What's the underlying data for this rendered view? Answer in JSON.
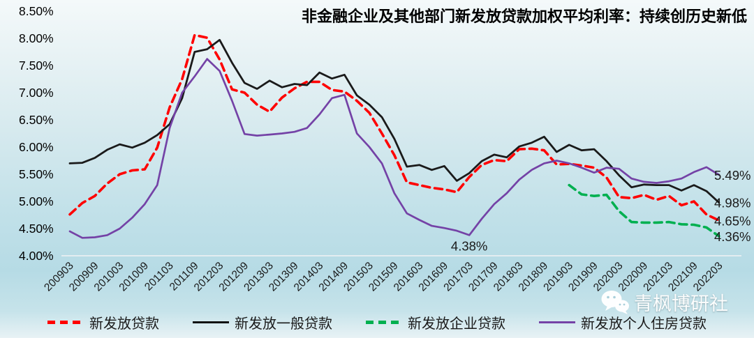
{
  "watermark": {
    "text": "青枫博研社",
    "icon": "wechat-icon"
  },
  "chart_data": {
    "type": "line",
    "title": "非金融企业及其他部门新发放贷款加权平均利率：持续创历史新低",
    "x_axis": {
      "categories": [
        "200903",
        "200906",
        "200909",
        "200912",
        "201003",
        "201006",
        "201009",
        "201012",
        "201103",
        "201106",
        "201109",
        "201112",
        "201203",
        "201206",
        "201209",
        "201212",
        "201303",
        "201306",
        "201309",
        "201312",
        "201403",
        "201406",
        "201409",
        "201412",
        "201503",
        "201506",
        "201509",
        "201512",
        "201603",
        "201606",
        "201609",
        "201612",
        "201703",
        "201706",
        "201709",
        "201712",
        "201803",
        "201806",
        "201809",
        "201812",
        "201903",
        "201906",
        "201909",
        "201912",
        "202003",
        "202006",
        "202009",
        "202012",
        "202103",
        "202106",
        "202109",
        "202112",
        "202203"
      ],
      "tick_labels": [
        "200903",
        "200909",
        "201003",
        "201009",
        "201103",
        "201109",
        "201203",
        "201209",
        "201303",
        "201309",
        "201403",
        "201409",
        "201503",
        "201509",
        "201603",
        "201609",
        "201703",
        "201709",
        "201803",
        "201809",
        "201903",
        "201909",
        "202003",
        "202009",
        "202103",
        "202109",
        "202203"
      ]
    },
    "y_axis": {
      "min": 4.0,
      "max": 8.5,
      "step": 0.5,
      "tick_labels": [
        "8.50%",
        "8.00%",
        "7.50%",
        "7.00%",
        "6.50%",
        "6.00%",
        "5.50%",
        "5.00%",
        "4.50%",
        "4.00%"
      ]
    },
    "series": [
      {
        "name": "新发放贷款",
        "color": "#ff0000",
        "style": "dashed",
        "values": [
          4.76,
          4.97,
          5.1,
          5.33,
          5.5,
          5.57,
          5.59,
          5.99,
          6.73,
          7.25,
          8.06,
          8.01,
          7.61,
          7.06,
          7.0,
          6.78,
          6.65,
          6.91,
          7.08,
          7.2,
          7.2,
          7.05,
          7.02,
          6.85,
          6.63,
          6.25,
          5.85,
          5.35,
          5.3,
          5.25,
          5.22,
          5.17,
          5.45,
          5.67,
          5.76,
          5.74,
          5.96,
          5.97,
          5.94,
          5.68,
          5.69,
          5.66,
          5.62,
          5.44,
          5.08,
          5.06,
          5.12,
          5.03,
          5.1,
          4.93,
          5.0,
          4.76,
          4.65
        ]
      },
      {
        "name": "新发放一般贷款",
        "color": "#1a1a1a",
        "style": "solid",
        "values": [
          5.7,
          5.71,
          5.8,
          5.95,
          6.05,
          5.99,
          6.08,
          6.22,
          6.42,
          6.9,
          7.75,
          7.8,
          7.97,
          7.55,
          7.18,
          7.07,
          7.22,
          7.1,
          7.16,
          7.14,
          7.37,
          7.26,
          7.33,
          6.95,
          6.78,
          6.55,
          6.15,
          5.64,
          5.67,
          5.58,
          5.65,
          5.38,
          5.52,
          5.74,
          5.86,
          5.81,
          6.01,
          6.08,
          6.19,
          5.91,
          6.04,
          5.94,
          5.96,
          5.74,
          5.48,
          5.26,
          5.31,
          5.3,
          5.3,
          5.2,
          5.3,
          5.19,
          4.98
        ]
      },
      {
        "name": "新发放企业贷款",
        "color": "#00b050",
        "style": "dashed",
        "values": [
          null,
          null,
          null,
          null,
          null,
          null,
          null,
          null,
          null,
          null,
          null,
          null,
          null,
          null,
          null,
          null,
          null,
          null,
          null,
          null,
          null,
          null,
          null,
          null,
          null,
          null,
          null,
          null,
          null,
          null,
          null,
          null,
          null,
          null,
          null,
          null,
          null,
          null,
          null,
          null,
          5.3,
          5.13,
          5.1,
          5.12,
          4.82,
          4.62,
          4.61,
          4.61,
          4.62,
          4.58,
          4.57,
          4.52,
          4.36
        ]
      },
      {
        "name": "新发放个人住房贷款",
        "color": "#7442a6",
        "style": "solid",
        "values": [
          4.45,
          4.33,
          4.34,
          4.38,
          4.5,
          4.7,
          4.95,
          5.3,
          6.35,
          7.0,
          7.3,
          7.62,
          7.4,
          6.85,
          6.24,
          6.21,
          6.23,
          6.25,
          6.28,
          6.35,
          6.6,
          6.9,
          6.96,
          6.25,
          6.0,
          5.7,
          5.15,
          4.78,
          4.66,
          4.55,
          4.51,
          4.46,
          4.38,
          4.68,
          4.95,
          5.15,
          5.4,
          5.58,
          5.7,
          5.75,
          5.7,
          5.62,
          5.53,
          5.62,
          5.6,
          5.42,
          5.36,
          5.34,
          5.37,
          5.42,
          5.54,
          5.63,
          5.49
        ]
      }
    ],
    "annotations": [
      {
        "text": "4.38%",
        "series": 3,
        "index": 32,
        "position": "below"
      }
    ],
    "end_labels": [
      {
        "text": "5.49%",
        "series": 3
      },
      {
        "text": "4.98%",
        "series": 1
      },
      {
        "text": "4.65%",
        "series": 0
      },
      {
        "text": "4.36%",
        "series": 2
      }
    ],
    "grid": "horizontal line at 4.00% only",
    "legend_position": "bottom"
  }
}
